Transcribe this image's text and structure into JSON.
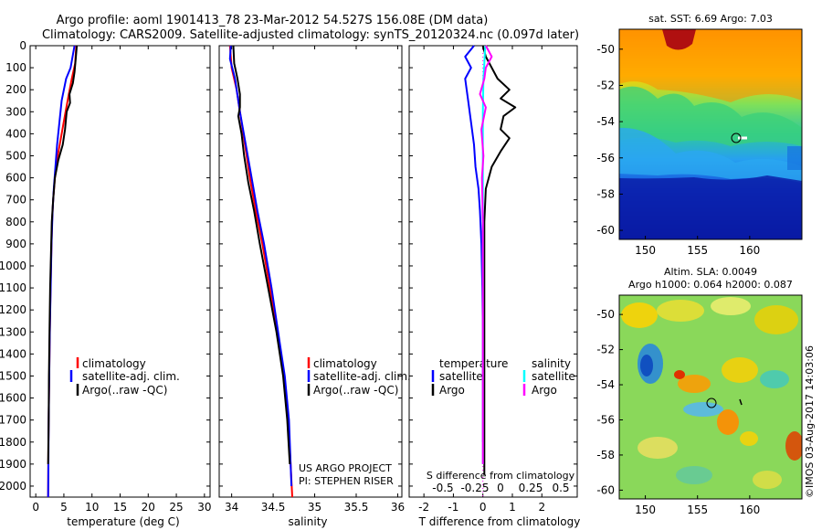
{
  "title_line1": "Argo profile: aoml 1901413_78 23-Mar-2012 54.527S 156.08E (DM data)",
  "title_line2": "Climatology: CARS2009. Satellite-adjusted climatology: synTS_20120324.nc (0.097d later)",
  "colors": {
    "climatology": "#ff0000",
    "satellite": "#0000ff",
    "argo": "#000000",
    "argo_s": "#ff00ff",
    "sat_s": "#00ffff"
  },
  "depth_ticks": [
    "0",
    "100",
    "200",
    "300",
    "400",
    "500",
    "600",
    "700",
    "800",
    "900",
    "1000",
    "1100",
    "1200",
    "1300",
    "1400",
    "1500",
    "1600",
    "1700",
    "1800",
    "1900",
    "2000"
  ],
  "panel_temp": {
    "xlabel": "temperature (deg C)",
    "xticks": [
      "0",
      "5",
      "10",
      "15",
      "20",
      "25",
      "30"
    ],
    "legend": [
      "climatology",
      "satellite-adj. clim.",
      "Argo(..raw -QC)"
    ]
  },
  "panel_sal": {
    "xlabel": "salinity",
    "xticks": [
      "34",
      "34.5",
      "35",
      "35.5",
      "36"
    ],
    "legend": [
      "climatology",
      "satellite-adj. clim.",
      "Argo(..raw -QC)"
    ],
    "credit1": "US ARGO PROJECT",
    "credit2": "PI: STEPHEN RISER"
  },
  "panel_diff": {
    "xlabel": "T difference from climatology",
    "xticks": [
      "-2",
      "-1",
      "0",
      "1",
      "2"
    ],
    "s_label": "S difference from climatology",
    "s_ticks": [
      "-0.5",
      "-0.25",
      "0",
      "0.25",
      "0.5"
    ],
    "legend_t_head": "temperature",
    "legend_s_head": "salinity",
    "legend_sat": "satellite",
    "legend_argo": "Argo"
  },
  "map_sst": {
    "title": "sat. SST: 6.69 Argo: 7.03",
    "yticks": [
      "-50",
      "-52",
      "-54",
      "-56",
      "-58",
      "-60"
    ],
    "xticks": [
      "150",
      "155",
      "160"
    ]
  },
  "map_sla": {
    "title1": "Altim. SLA: 0.0049",
    "title2": "Argo h1000: 0.064 h2000: 0.087",
    "yticks": [
      "-50",
      "-52",
      "-54",
      "-56",
      "-58",
      "-60"
    ],
    "xticks": [
      "150",
      "155",
      "160"
    ],
    "stamp": "©IMOS 03-Aug-2017 14:03:06"
  },
  "chart_data": [
    {
      "type": "line",
      "xlabel": "temperature (deg C)",
      "ylabel": "",
      "xlim": [
        -1,
        31
      ],
      "ylim": [
        2050,
        0
      ],
      "series": [
        {
          "name": "climatology",
          "points": [
            [
              7.2,
              0
            ],
            [
              7.0,
              80
            ],
            [
              6.4,
              150
            ],
            [
              5.8,
              230
            ],
            [
              5.3,
              300
            ],
            [
              4.6,
              400
            ],
            [
              3.9,
              500
            ],
            [
              3.4,
              600
            ],
            [
              3.1,
              700
            ],
            [
              2.9,
              800
            ],
            [
              2.7,
              1000
            ],
            [
              2.55,
              1200
            ],
            [
              2.45,
              1400
            ],
            [
              2.35,
              1600
            ],
            [
              2.25,
              1800
            ],
            [
              2.2,
              2050
            ]
          ]
        },
        {
          "name": "satellite-adj. clim.",
          "points": [
            [
              6.9,
              0
            ],
            [
              6.2,
              100
            ],
            [
              5.4,
              150
            ],
            [
              4.6,
              250
            ],
            [
              4.2,
              350
            ],
            [
              3.8,
              450
            ],
            [
              3.5,
              550
            ],
            [
              3.2,
              650
            ],
            [
              3.0,
              750
            ],
            [
              2.8,
              900
            ],
            [
              2.65,
              1100
            ],
            [
              2.5,
              1300
            ],
            [
              2.4,
              1500
            ],
            [
              2.3,
              1700
            ],
            [
              2.25,
              1900
            ],
            [
              2.2,
              2050
            ]
          ]
        },
        {
          "name": "Argo(..raw -QC)",
          "points": [
            [
              7.3,
              0
            ],
            [
              7.1,
              60
            ],
            [
              6.9,
              120
            ],
            [
              6.6,
              170
            ],
            [
              6.0,
              220
            ],
            [
              6.1,
              260
            ],
            [
              5.5,
              300
            ],
            [
              5.2,
              380
            ],
            [
              4.8,
              450
            ],
            [
              4.0,
              520
            ],
            [
              3.4,
              600
            ],
            [
              3.1,
              700
            ],
            [
              2.85,
              800
            ],
            [
              2.7,
              950
            ],
            [
              2.55,
              1100
            ],
            [
              2.45,
              1300
            ],
            [
              2.35,
              1500
            ],
            [
              2.3,
              1700
            ],
            [
              2.2,
              1900
            ]
          ]
        }
      ]
    },
    {
      "type": "line",
      "xlabel": "salinity",
      "ylabel": "",
      "xlim": [
        33.85,
        36.05
      ],
      "ylim": [
        2050,
        0
      ],
      "series": [
        {
          "name": "climatology",
          "points": [
            [
              33.98,
              0
            ],
            [
              34.0,
              100
            ],
            [
              34.06,
              200
            ],
            [
              34.1,
              300
            ],
            [
              34.16,
              450
            ],
            [
              34.22,
              600
            ],
            [
              34.29,
              750
            ],
            [
              34.37,
              900
            ],
            [
              34.46,
              1100
            ],
            [
              34.55,
              1300
            ],
            [
              34.63,
              1500
            ],
            [
              34.68,
              1700
            ],
            [
              34.71,
              1900
            ],
            [
              34.73,
              2050
            ]
          ]
        },
        {
          "name": "satellite-adj. clim.",
          "points": [
            [
              33.99,
              0
            ],
            [
              33.98,
              60
            ],
            [
              34.04,
              150
            ],
            [
              34.1,
              300
            ],
            [
              34.17,
              450
            ],
            [
              34.24,
              600
            ],
            [
              34.31,
              750
            ],
            [
              34.39,
              900
            ],
            [
              34.48,
              1100
            ],
            [
              34.56,
              1300
            ],
            [
              34.64,
              1500
            ],
            [
              34.69,
              1700
            ],
            [
              34.71,
              1900
            ],
            [
              34.72,
              2000
            ]
          ]
        },
        {
          "name": "Argo(..raw -QC)",
          "points": [
            [
              34.02,
              0
            ],
            [
              34.03,
              80
            ],
            [
              34.07,
              150
            ],
            [
              34.1,
              220
            ],
            [
              34.1,
              280
            ],
            [
              34.08,
              320
            ],
            [
              34.12,
              400
            ],
            [
              34.15,
              500
            ],
            [
              34.2,
              620
            ],
            [
              34.27,
              750
            ],
            [
              34.34,
              900
            ],
            [
              34.44,
              1100
            ],
            [
              34.54,
              1300
            ],
            [
              34.62,
              1500
            ],
            [
              34.67,
              1700
            ],
            [
              34.7,
              1900
            ]
          ]
        }
      ]
    },
    {
      "type": "line",
      "xlabel": "T difference from climatology",
      "ylabel": "",
      "xlim": [
        -2.5,
        3.2
      ],
      "ylim": [
        2050,
        0
      ],
      "series": [
        {
          "name": "temperature satellite",
          "points": [
            [
              -0.3,
              0
            ],
            [
              -0.6,
              50
            ],
            [
              -0.4,
              100
            ],
            [
              -0.6,
              150
            ],
            [
              -0.5,
              250
            ],
            [
              -0.4,
              350
            ],
            [
              -0.3,
              450
            ],
            [
              -0.25,
              550
            ],
            [
              -0.15,
              650
            ],
            [
              -0.1,
              750
            ],
            [
              -0.05,
              900
            ],
            [
              -0.02,
              1100
            ],
            [
              0,
              1300
            ],
            [
              0,
              1600
            ],
            [
              0,
              1800
            ]
          ]
        },
        {
          "name": "temperature Argo",
          "points": [
            [
              0,
              0
            ],
            [
              0.1,
              50
            ],
            [
              0.3,
              100
            ],
            [
              0.5,
              150
            ],
            [
              0.9,
              200
            ],
            [
              0.6,
              240
            ],
            [
              1.1,
              280
            ],
            [
              0.7,
              320
            ],
            [
              0.6,
              380
            ],
            [
              0.9,
              420
            ],
            [
              0.6,
              480
            ],
            [
              0.3,
              550
            ],
            [
              0.1,
              650
            ],
            [
              0.05,
              800
            ],
            [
              0.05,
              1000
            ],
            [
              0.05,
              1400
            ],
            [
              0.05,
              1800
            ],
            [
              0.05,
              1950
            ]
          ]
        },
        {
          "name": "salinity satellite",
          "points": [
            [
              0.08,
              0
            ],
            [
              0.05,
              80
            ],
            [
              0.02,
              150
            ],
            [
              0,
              300
            ],
            [
              0,
              600
            ],
            [
              0,
              1000
            ],
            [
              0,
              1400
            ],
            [
              0,
              1900
            ]
          ]
        },
        {
          "name": "salinity Argo",
          "points": [
            [
              0.1,
              0
            ],
            [
              0.3,
              50
            ],
            [
              0.1,
              100
            ],
            [
              0.05,
              150
            ],
            [
              -0.1,
              220
            ],
            [
              0.1,
              280
            ],
            [
              -0.05,
              380
            ],
            [
              0.02,
              500
            ],
            [
              -0.03,
              600
            ],
            [
              0,
              800
            ],
            [
              0,
              1200
            ],
            [
              0,
              1600
            ],
            [
              0,
              1900
            ]
          ]
        }
      ]
    },
    {
      "type": "heatmap",
      "title": "sat. SST: 6.69 Argo: 7.03",
      "x_range": [
        147.5,
        165
      ],
      "y_range": [
        -60.5,
        -48.9
      ],
      "marker": [
        156.08,
        -54.527
      ]
    },
    {
      "type": "heatmap",
      "title": "Altim. SLA: 0.0049",
      "subtitle": "Argo h1000: 0.064 h2000: 0.087",
      "x_range": [
        147.5,
        165
      ],
      "y_range": [
        -60.5,
        -48.9
      ],
      "marker": [
        156.08,
        -54.527
      ]
    }
  ]
}
